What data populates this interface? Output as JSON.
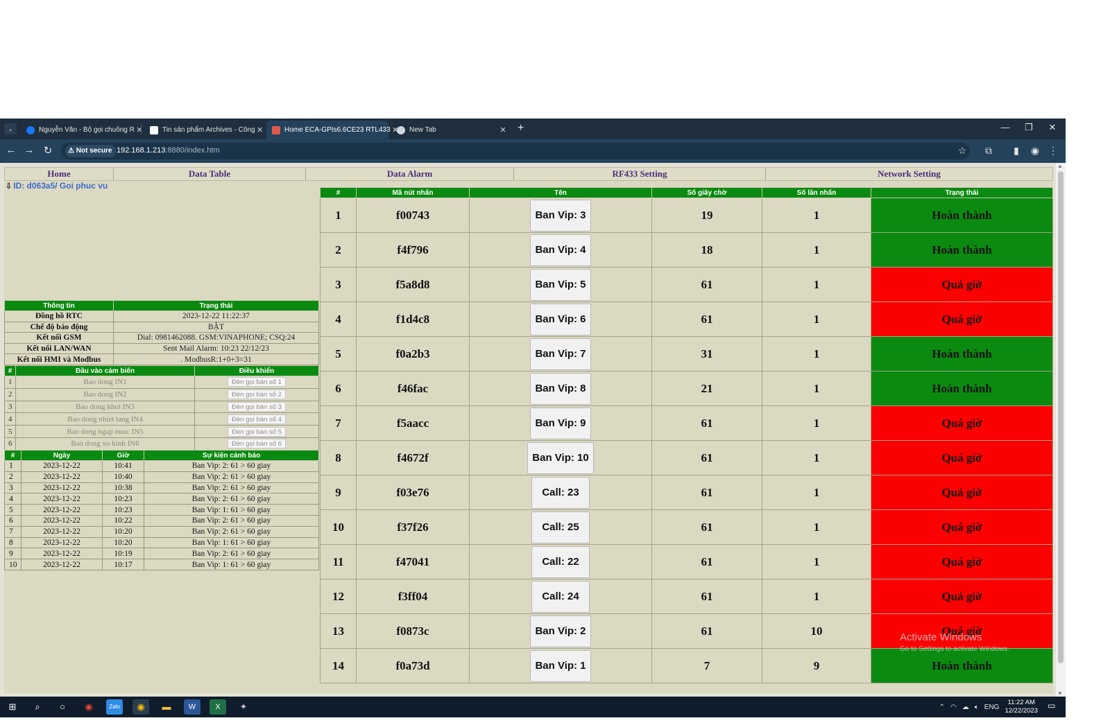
{
  "browser": {
    "tabs": [
      {
        "title": "Nguyễn Văn - Bộ gọi chuông R",
        "active": false,
        "icon": "facebook-icon",
        "color": "#1877f2"
      },
      {
        "title": "Tin sản phẩm Archives - Công",
        "active": false,
        "icon": "document-icon",
        "color": "#ffffff"
      },
      {
        "title": "Home ECA-GPIs6.6CE23 RTL433",
        "active": true,
        "icon": "page-icon",
        "color": "#e0584b"
      },
      {
        "title": "New Tab",
        "active": false,
        "icon": "chrome-icon",
        "color": "#cfd6dd"
      }
    ],
    "security_label": "Not secure",
    "url_host": "192.168.1.213",
    "url_path": ":8880/index.htm"
  },
  "nav": {
    "items": [
      "Home",
      "Data Table",
      "Data Alarm",
      "RF433 Setting",
      "Network Setting"
    ]
  },
  "device_id": "ID: d063a5/ Goi phuc vu",
  "info": {
    "headers": [
      "Thông tin",
      "Trạng thái"
    ],
    "rows": [
      {
        "label": "Đồng hồ RTC",
        "value": "2023-12-22 11:22:37"
      },
      {
        "label": "Chế độ báo động",
        "value": "BẬT"
      },
      {
        "label": "Kết nối GSM",
        "value": "Dial: 0981462088. GSM:VINAPHONE; CSQ:24"
      },
      {
        "label": "Kết nối LAN/WAN",
        "value": "Sent Mail Alarm: 10:23 22/12/23"
      },
      {
        "label": "Kết nối HMI và Modbus",
        "value": ". ModbusR:1+0+3=31"
      }
    ]
  },
  "sensors": {
    "headers": [
      "#",
      "Đầu vào cảm biến",
      "Điều khiển"
    ],
    "rows": [
      {
        "num": "1",
        "name": "Bao dong IN1",
        "control": "Đèn gọi bàn số 1"
      },
      {
        "num": "2",
        "name": "Bao dong IN2",
        "control": "Đèn gọi bàn số 2"
      },
      {
        "num": "3",
        "name": "Bao dong khoi IN3",
        "control": "Đèn gọi bàn số 3"
      },
      {
        "num": "4",
        "name": "Bao dong nhiet tang IN4",
        "control": "Đèn gọi bàn số 4"
      },
      {
        "num": "5",
        "name": "Bao dong ngap nuoc IN5",
        "control": "Đèn gọi bàn số 5"
      },
      {
        "num": "6",
        "name": "Bao dong vo kinh IN6",
        "control": "Đèn gọi bàn số 6"
      }
    ]
  },
  "alarms": {
    "headers": [
      "#",
      "Ngày",
      "Giờ",
      "Sự kiện cảnh báo"
    ],
    "rows": [
      {
        "num": "1",
        "date": "2023-12-22",
        "time": "10:41",
        "event": "Ban Vip: 2: 61 > 60 giay"
      },
      {
        "num": "2",
        "date": "2023-12-22",
        "time": "10:40",
        "event": "Ban Vip: 2: 61 > 60 giay"
      },
      {
        "num": "3",
        "date": "2023-12-22",
        "time": "10:38",
        "event": "Ban Vip: 2: 61 > 60 giay"
      },
      {
        "num": "4",
        "date": "2023-12-22",
        "time": "10:23",
        "event": "Ban Vip: 2: 61 > 60 giay"
      },
      {
        "num": "5",
        "date": "2023-12-22",
        "time": "10:23",
        "event": "Ban Vip: 1: 61 > 60 giay"
      },
      {
        "num": "6",
        "date": "2023-12-22",
        "time": "10:22",
        "event": "Ban Vip: 2: 61 > 60 giay"
      },
      {
        "num": "7",
        "date": "2023-12-22",
        "time": "10:20",
        "event": "Ban Vip: 2: 61 > 60 giay"
      },
      {
        "num": "8",
        "date": "2023-12-22",
        "time": "10:20",
        "event": "Ban Vip: 1: 61 > 60 giay"
      },
      {
        "num": "9",
        "date": "2023-12-22",
        "time": "10:19",
        "event": "Ban Vip: 2: 61 > 60 giay"
      },
      {
        "num": "10",
        "date": "2023-12-22",
        "time": "10:17",
        "event": "Ban Vip: 1: 61 > 60 giay"
      }
    ]
  },
  "buttons_table": {
    "headers": [
      "#",
      "Mã nút nhấn",
      "Tên",
      "Số giây chờ",
      "Số lần nhấn",
      "Trạng thái"
    ],
    "rows": [
      {
        "num": "1",
        "code": "f00743",
        "name": "Ban Vip: 3",
        "wait": "19",
        "count": "1",
        "status": "Hoàn thành",
        "state": "done"
      },
      {
        "num": "2",
        "code": "f4f796",
        "name": "Ban Vip: 4",
        "wait": "18",
        "count": "1",
        "status": "Hoàn thành",
        "state": "done"
      },
      {
        "num": "3",
        "code": "f5a8d8",
        "name": "Ban Vip: 5",
        "wait": "61",
        "count": "1",
        "status": "Quá giờ",
        "state": "over"
      },
      {
        "num": "4",
        "code": "f1d4c8",
        "name": "Ban Vip: 6",
        "wait": "61",
        "count": "1",
        "status": "Quá giờ",
        "state": "over"
      },
      {
        "num": "5",
        "code": "f0a2b3",
        "name": "Ban Vip: 7",
        "wait": "31",
        "count": "1",
        "status": "Hoàn thành",
        "state": "done"
      },
      {
        "num": "6",
        "code": "f46fac",
        "name": "Ban Vip: 8",
        "wait": "21",
        "count": "1",
        "status": "Hoàn thành",
        "state": "done"
      },
      {
        "num": "7",
        "code": "f5aacc",
        "name": "Ban Vip: 9",
        "wait": "61",
        "count": "1",
        "status": "Quá giờ",
        "state": "over"
      },
      {
        "num": "8",
        "code": "f4672f",
        "name": "Ban Vip: 10",
        "wait": "61",
        "count": "1",
        "status": "Quá giờ",
        "state": "over"
      },
      {
        "num": "9",
        "code": "f03e76",
        "name": "Call: 23",
        "wait": "61",
        "count": "1",
        "status": "Quá giờ",
        "state": "over"
      },
      {
        "num": "10",
        "code": "f37f26",
        "name": "Call: 25",
        "wait": "61",
        "count": "1",
        "status": "Quá giờ",
        "state": "over"
      },
      {
        "num": "11",
        "code": "f47041",
        "name": "Call: 22",
        "wait": "61",
        "count": "1",
        "status": "Quá giờ",
        "state": "over"
      },
      {
        "num": "12",
        "code": "f3ff04",
        "name": "Call: 24",
        "wait": "61",
        "count": "1",
        "status": "Quá giờ",
        "state": "over"
      },
      {
        "num": "13",
        "code": "f0873c",
        "name": "Ban Vip: 2",
        "wait": "61",
        "count": "10",
        "status": "Quá giờ",
        "state": "over"
      },
      {
        "num": "14",
        "code": "f0a73d",
        "name": "Ban Vip: 1",
        "wait": "7",
        "count": "9",
        "status": "Hoàn thành",
        "state": "done"
      }
    ]
  },
  "status_colors": {
    "done": "#0b8a10",
    "over": "#fb0000"
  },
  "watermark": {
    "title": "Activate Windows",
    "subtitle": "Go to Settings to activate Windows."
  },
  "taskbar": {
    "apps": [
      "start-icon",
      "search-icon",
      "cortana-icon",
      "chrome-icon",
      "zalo-icon",
      "chrome-active-icon",
      "folder-icon",
      "word-icon",
      "excel-icon",
      "app-icon"
    ],
    "lang": "ENG",
    "time": "11:22 AM",
    "date": "12/22/2023"
  }
}
